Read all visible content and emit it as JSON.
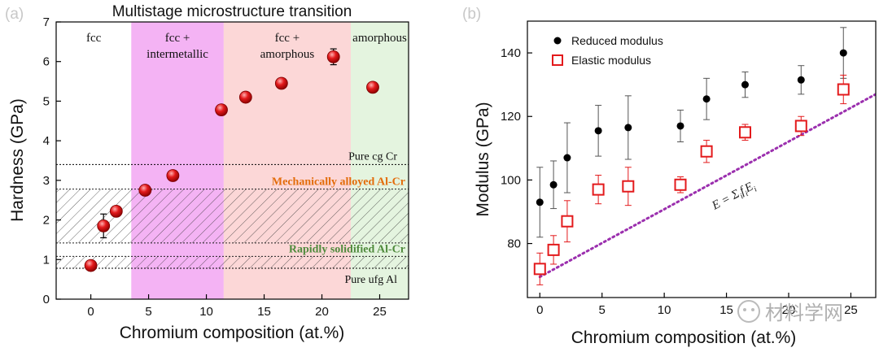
{
  "chart_data": [
    {
      "type": "scatter",
      "panel_label": "(a)",
      "title": "Multistage microstructure transition",
      "xlabel": "Chromium composition (at.%)",
      "ylabel": "Hardness (GPa)",
      "xlim": [
        -3,
        27.5
      ],
      "ylim": [
        0,
        7
      ],
      "x_ticks": [
        0,
        5,
        10,
        15,
        20,
        25
      ],
      "y_ticks": [
        0,
        1,
        2,
        3,
        4,
        5,
        6,
        7
      ],
      "grid": false,
      "regions": [
        {
          "label_lines": [
            "fcc"
          ],
          "x_range": [
            -3,
            3.5
          ],
          "color": "#ffffff"
        },
        {
          "label_lines": [
            "fcc +",
            "intermetallic"
          ],
          "x_range": [
            3.5,
            11.5
          ],
          "color": "#f2a6f2"
        },
        {
          "label_lines": [
            "fcc +",
            "amorphous"
          ],
          "x_range": [
            11.5,
            22.5
          ],
          "color": "#fcd0d0"
        },
        {
          "label_lines": [
            "amorphous"
          ],
          "x_range": [
            22.5,
            27.5
          ],
          "color": "#dff2d9"
        }
      ],
      "series": [
        {
          "x": [
            0,
            1.1,
            2.2,
            4.7,
            7.1,
            11.3,
            13.4,
            16.5,
            21.0,
            24.4
          ],
          "y": [
            0.85,
            1.85,
            2.22,
            2.75,
            3.12,
            4.78,
            5.1,
            5.45,
            6.12,
            5.35
          ],
          "yerr": [
            0.05,
            0.3,
            0.12,
            0.08,
            0.1,
            0.08,
            0.08,
            0.08,
            0.2,
            0.1
          ],
          "color": "#e31a1c"
        }
      ],
      "reference_lines": [
        {
          "label": "Pure cg Cr",
          "y": 3.4,
          "color": "#000000"
        },
        {
          "label": "Pure ufg Al",
          "y": 0.78,
          "color": "#000000"
        }
      ],
      "hatched_bands": [
        {
          "label": "Mechanically alloyed Al-Cr",
          "y_range": [
            1.42,
            2.78
          ],
          "color": "#e36c0a"
        },
        {
          "label": "Rapidly solidified Al-Cr",
          "y_range": [
            0.78,
            1.08
          ],
          "color": "#4f8a3c"
        }
      ]
    },
    {
      "type": "scatter",
      "panel_label": "(b)",
      "xlabel": "Chromium composition (at.%)",
      "ylabel": "Modulus (GPa)",
      "xlim": [
        -1,
        27
      ],
      "ylim": [
        63,
        150
      ],
      "x_ticks": [
        0,
        5,
        10,
        15,
        20,
        25
      ],
      "y_ticks": [
        80,
        100,
        120,
        140
      ],
      "grid": false,
      "legend_position": "top-left",
      "series": [
        {
          "name": "Reduced modulus",
          "marker": "filled-circle",
          "color": "#000000",
          "x": [
            0,
            1.1,
            2.2,
            4.7,
            7.1,
            11.3,
            13.4,
            16.5,
            21.0,
            24.4
          ],
          "y": [
            93,
            98.5,
            107,
            115.5,
            116.5,
            117,
            125.5,
            130,
            131.5,
            140
          ],
          "yerr": [
            11,
            7.5,
            11,
            8,
            10,
            5,
            6.5,
            4,
            4.5,
            8
          ]
        },
        {
          "name": "Elastic modulus",
          "marker": "open-square",
          "color": "#e31a1c",
          "x": [
            0,
            1.1,
            2.2,
            4.7,
            7.1,
            11.3,
            13.4,
            16.5,
            21.0,
            24.4
          ],
          "y": [
            72,
            78,
            87,
            97,
            98,
            98.5,
            109,
            115,
            117,
            128.5
          ],
          "yerr": [
            5,
            4.5,
            6.5,
            4.5,
            6,
            2.5,
            3.5,
            2.5,
            3,
            4.5
          ]
        }
      ],
      "trend_line": {
        "label": "E = Σ_i f_i E_i",
        "x": [
          0,
          27
        ],
        "y": [
          69.5,
          127
        ],
        "color": "#9b2fae"
      }
    }
  ],
  "watermark": "材料学网"
}
